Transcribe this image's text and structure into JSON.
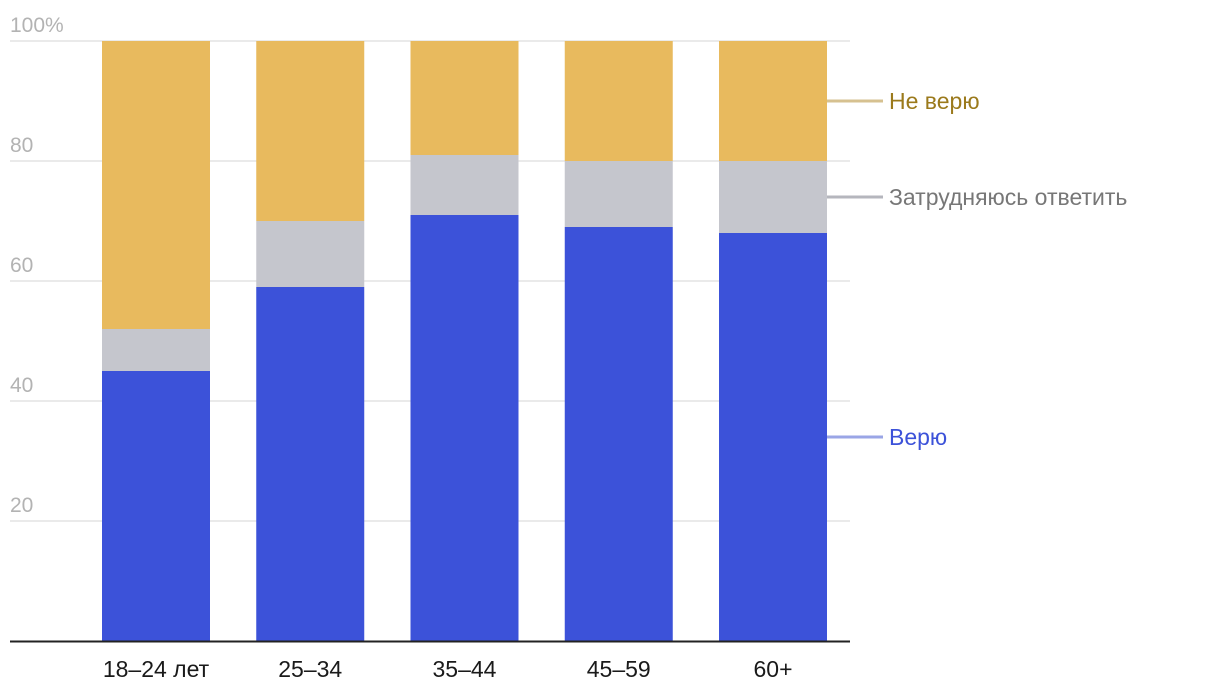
{
  "chart_data": {
    "type": "bar",
    "stacked": true,
    "categories": [
      "18–24 лет",
      "25–34",
      "35–44",
      "45–59",
      "60+"
    ],
    "series": [
      {
        "name": "Верю",
        "values": [
          45,
          59,
          71,
          69,
          68
        ],
        "color": "#3c52d9",
        "legend_color": "#9aa5e6",
        "text_color": "#3c52d9"
      },
      {
        "name": "Затрудняюсь ответить",
        "values": [
          7,
          11,
          10,
          11,
          12
        ],
        "color": "#c5c6cd",
        "legend_color": "#b5b6bd",
        "text_color": "#777777"
      },
      {
        "name": "Не верю",
        "values": [
          48,
          30,
          19,
          20,
          20
        ],
        "color": "#e8ba5e",
        "legend_color": "#d6c190",
        "text_color": "#9b7a1c"
      }
    ],
    "y_ticks": [
      "20",
      "40",
      "60",
      "80",
      "100%"
    ],
    "y_tick_values": [
      20,
      40,
      60,
      80,
      100
    ],
    "ylim": [
      0,
      100
    ],
    "grid": true,
    "legend_position": "right",
    "title": "",
    "xlabel": "",
    "ylabel": ""
  }
}
